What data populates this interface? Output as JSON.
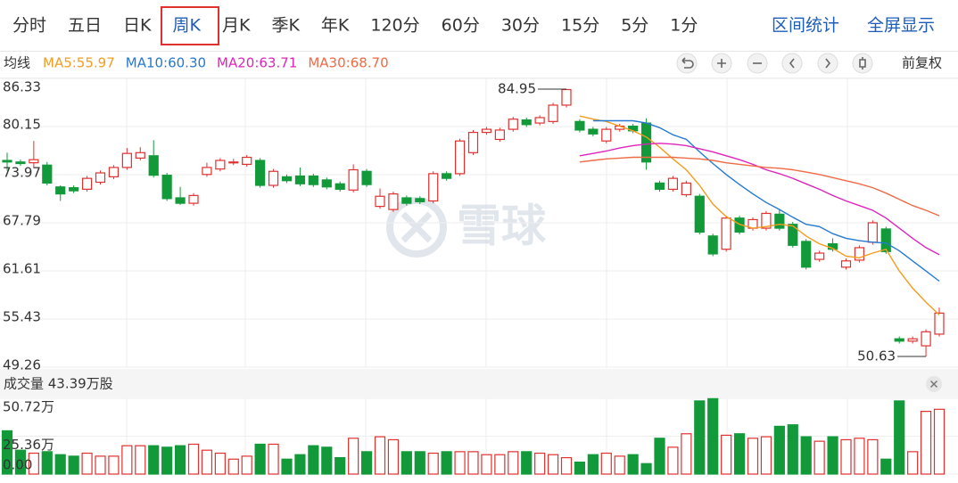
{
  "tabs": [
    {
      "label": "分时",
      "selected": false
    },
    {
      "label": "五日",
      "selected": false
    },
    {
      "label": "日K",
      "selected": false
    },
    {
      "label": "周K",
      "selected": true
    },
    {
      "label": "月K",
      "selected": false
    },
    {
      "label": "季K",
      "selected": false
    },
    {
      "label": "年K",
      "selected": false
    },
    {
      "label": "120分",
      "selected": false
    },
    {
      "label": "60分",
      "selected": false
    },
    {
      "label": "30分",
      "selected": false
    },
    {
      "label": "15分",
      "selected": false
    },
    {
      "label": "5分",
      "selected": false
    },
    {
      "label": "1分",
      "selected": false
    }
  ],
  "actions": [
    "区间统计",
    "全屏显示"
  ],
  "chart_data": {
    "type": "candlestick",
    "indicator_label": "均线",
    "adjust_label": "前复权",
    "watermark": "雪球",
    "up_color": "#e0312f",
    "down_color": "#129a3a",
    "open": [
      75.8,
      75.6,
      75.5,
      75.2,
      72.4,
      72.3,
      72.1,
      73.0,
      73.7,
      74.9,
      76.1,
      76.4,
      73.9,
      71.0,
      70.3,
      74.0,
      74.7,
      75.5,
      75.3,
      75.8,
      72.6,
      73.7,
      73.8,
      73.8,
      73.3,
      72.8,
      72.0,
      74.4,
      69.9,
      69.5,
      71.0,
      70.9,
      70.6,
      74.1,
      74.1,
      76.8,
      79.4,
      78.5,
      79.8,
      81.0,
      80.6,
      80.8,
      82.9,
      80.8,
      79.8,
      78.3,
      79.8,
      80.2,
      80.6,
      72.9,
      72.1,
      71.4,
      71.2,
      66.1,
      64.4,
      68.4,
      67.1,
      67.1,
      68.9,
      67.6,
      65.4,
      63.1,
      65.1,
      62.1,
      63.0,
      65.3,
      67.0,
      52.9,
      52.6,
      52.0,
      53.5
    ],
    "high": [
      76.8,
      75.9,
      78.3,
      75.6,
      72.6,
      72.6,
      73.8,
      74.5,
      75.2,
      77.4,
      77.5,
      78.4,
      74.2,
      72.4,
      71.6,
      75.5,
      76.1,
      76.0,
      76.5,
      76.1,
      74.7,
      74.0,
      74.9,
      74.1,
      73.6,
      73.1,
      75.3,
      74.7,
      72.2,
      71.8,
      71.3,
      71.2,
      74.4,
      74.4,
      78.6,
      79.7,
      80.1,
      80.0,
      81.4,
      81.3,
      81.6,
      83.2,
      84.95,
      81.1,
      80.1,
      80.1,
      80.5,
      80.5,
      81.2,
      73.2,
      73.8,
      73.2,
      71.5,
      66.4,
      68.7,
      68.7,
      68.5,
      69.3,
      69.5,
      67.9,
      65.7,
      64.2,
      65.8,
      63.2,
      64.9,
      68.1,
      67.3,
      53.2,
      53.2,
      54.1,
      56.9
    ],
    "low": [
      74.5,
      75.1,
      74.8,
      72.6,
      70.6,
      71.6,
      71.8,
      72.7,
      73.4,
      74.6,
      75.8,
      73.6,
      70.6,
      70.1,
      70.0,
      73.7,
      74.4,
      75.2,
      75.0,
      72.3,
      72.3,
      72.9,
      72.5,
      72.4,
      72.1,
      71.8,
      71.7,
      72.4,
      69.6,
      69.2,
      70.0,
      70.2,
      70.3,
      73.2,
      73.8,
      76.5,
      79.1,
      78.2,
      79.5,
      80.1,
      80.3,
      80.5,
      82.6,
      79.4,
      78.9,
      78.0,
      79.5,
      79.3,
      74.6,
      71.8,
      71.8,
      71.1,
      66.3,
      63.5,
      64.1,
      66.3,
      66.8,
      66.8,
      66.8,
      64.6,
      61.8,
      62.8,
      64.1,
      61.8,
      62.7,
      65.0,
      63.8,
      52.3,
      52.3,
      50.63,
      53.2
    ],
    "close": [
      75.6,
      75.4,
      75.9,
      72.9,
      71.5,
      71.9,
      73.5,
      74.2,
      74.9,
      76.7,
      76.8,
      73.9,
      70.9,
      70.3,
      71.3,
      74.9,
      75.8,
      75.6,
      76.2,
      72.6,
      74.4,
      73.2,
      72.8,
      72.7,
      72.4,
      72.1,
      74.6,
      72.7,
      71.2,
      71.5,
      70.3,
      70.5,
      74.1,
      73.5,
      78.3,
      79.4,
      79.8,
      79.7,
      81.1,
      80.4,
      81.3,
      82.9,
      84.9,
      79.7,
      79.2,
      79.8,
      80.2,
      79.6,
      75.6,
      72.1,
      73.5,
      72.9,
      66.6,
      63.8,
      68.4,
      66.6,
      68.2,
      69.0,
      67.1,
      64.9,
      62.1,
      63.9,
      64.4,
      62.9,
      64.6,
      67.8,
      64.1,
      52.6,
      52.9,
      53.8,
      56.2
    ],
    "series": [
      {
        "name": "MA5:55.97",
        "color": "#f39c1f",
        "values": [
          null,
          null,
          null,
          null,
          null,
          null,
          null,
          null,
          null,
          null,
          null,
          null,
          null,
          null,
          null,
          null,
          null,
          null,
          null,
          null,
          null,
          null,
          null,
          null,
          null,
          null,
          null,
          null,
          null,
          null,
          null,
          null,
          null,
          null,
          null,
          null,
          null,
          null,
          null,
          null,
          null,
          null,
          null,
          81.5,
          81.1,
          80.8,
          80.2,
          79.6,
          78.8,
          77.5,
          76.0,
          74.6,
          72.6,
          70.2,
          68.6,
          67.6,
          67.1,
          67.3,
          67.6,
          67.4,
          66.1,
          65.1,
          64.5,
          63.5,
          63.3,
          63.9,
          64.4,
          61.6,
          59.4,
          57.6,
          55.97
        ]
      },
      {
        "name": "MA10:60.30",
        "color": "#2479d2",
        "values": [
          null,
          null,
          null,
          null,
          null,
          null,
          null,
          null,
          null,
          null,
          null,
          null,
          null,
          null,
          null,
          null,
          null,
          null,
          null,
          null,
          null,
          null,
          null,
          null,
          null,
          null,
          null,
          null,
          null,
          null,
          null,
          null,
          null,
          null,
          null,
          null,
          null,
          null,
          null,
          null,
          null,
          null,
          null,
          null,
          80.9,
          80.9,
          80.9,
          80.9,
          80.6,
          80.0,
          79.1,
          78.5,
          76.9,
          75.4,
          74.0,
          72.7,
          71.5,
          70.4,
          69.5,
          68.5,
          67.6,
          67.3,
          66.4,
          65.8,
          65.5,
          65.3,
          65.2,
          64.2,
          62.9,
          61.6,
          60.3
        ]
      },
      {
        "name": "MA20:63.71",
        "color": "#de24bd",
        "values": [
          null,
          null,
          null,
          null,
          null,
          null,
          null,
          null,
          null,
          null,
          null,
          null,
          null,
          null,
          null,
          null,
          null,
          null,
          null,
          null,
          null,
          null,
          null,
          null,
          null,
          null,
          null,
          null,
          null,
          null,
          null,
          null,
          null,
          null,
          null,
          null,
          null,
          null,
          null,
          null,
          null,
          null,
          null,
          76.4,
          76.7,
          77.0,
          77.4,
          77.7,
          77.9,
          78.0,
          77.9,
          77.7,
          77.3,
          76.9,
          76.4,
          75.9,
          75.3,
          74.6,
          74.1,
          73.5,
          72.8,
          72.1,
          71.3,
          70.6,
          70.0,
          69.4,
          68.4,
          67.1,
          65.8,
          64.6,
          63.71
        ]
      },
      {
        "name": "MA30:68.70",
        "color": "#f06a46",
        "values": [
          null,
          null,
          null,
          null,
          null,
          null,
          null,
          null,
          null,
          null,
          null,
          null,
          null,
          null,
          null,
          null,
          null,
          null,
          null,
          null,
          null,
          null,
          null,
          null,
          null,
          null,
          null,
          null,
          null,
          null,
          null,
          null,
          null,
          null,
          null,
          null,
          null,
          null,
          null,
          null,
          null,
          null,
          null,
          75.6,
          75.8,
          76.0,
          76.1,
          76.2,
          76.2,
          76.2,
          76.2,
          76.1,
          76.0,
          75.8,
          75.5,
          75.3,
          75.1,
          74.9,
          74.8,
          74.6,
          74.3,
          74.0,
          73.6,
          73.2,
          72.8,
          72.3,
          71.6,
          70.8,
          70.0,
          69.4,
          68.7
        ]
      }
    ],
    "annotations": [
      {
        "value": 84.95,
        "label": "84.95"
      },
      {
        "value": 50.63,
        "label": "50.63"
      }
    ],
    "ylim": [
      49.26,
      86.33
    ],
    "yticks": [
      86.33,
      80.15,
      73.97,
      67.79,
      61.61,
      55.43,
      49.26
    ],
    "grid": true,
    "volume": {
      "type": "bar",
      "title": "成交量 43.39万股",
      "values": [
        29,
        16,
        14,
        15,
        13,
        12,
        14,
        12,
        12,
        19,
        19,
        19,
        18,
        19,
        20,
        16,
        14,
        10,
        12,
        20,
        20,
        10,
        13,
        19,
        18,
        11,
        24,
        15,
        25,
        23,
        15,
        15,
        14,
        15,
        15,
        15,
        13,
        13,
        15,
        15,
        14,
        13,
        11,
        8,
        13,
        14,
        12,
        13,
        7,
        24,
        18,
        27,
        49,
        50.5,
        26,
        27,
        24,
        25,
        32,
        33,
        25,
        22,
        25,
        23,
        24,
        23,
        10,
        49,
        15,
        42,
        43.39
      ],
      "ylim": [
        0,
        50.72
      ],
      "yticks": [
        {
          "value": 0,
          "label": "0.00"
        },
        {
          "value": 25.36,
          "label": "25.36万"
        },
        {
          "value": 50.72,
          "label": "50.72万"
        }
      ]
    }
  }
}
